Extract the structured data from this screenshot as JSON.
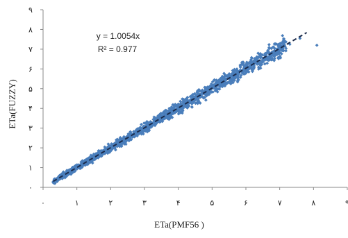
{
  "chart_data": {
    "type": "scatter",
    "title": "",
    "xlabel": "ETa(PMF56 )",
    "ylabel": "ETa(FUZZY)",
    "xlim": [
      0,
      9
    ],
    "ylim": [
      0,
      9
    ],
    "x_ticks": [
      "٠",
      "١",
      "٢",
      "٣",
      "۴",
      "۵",
      "۶",
      "٧",
      "٨",
      "٩"
    ],
    "y_ticks": [
      "٠",
      "١",
      "٢",
      "٣",
      "۴",
      "۵",
      "۶",
      "٧",
      "٨",
      "٩"
    ],
    "grid": false,
    "series": [
      {
        "marker": "diamond",
        "color": "#4a7ebb",
        "point_count_note": "",
        "x": [
          0.3,
          0.35,
          0.4,
          0.45,
          0.5,
          0.6,
          0.7,
          0.8,
          0.9,
          1.0,
          1.1,
          1.2,
          1.3,
          1.4,
          1.5,
          1.6,
          1.7,
          1.8,
          1.9,
          2.0,
          2.1,
          2.2,
          2.3,
          2.4,
          2.5,
          2.6,
          2.7,
          2.8,
          2.9,
          3.0,
          3.1,
          3.2,
          3.3,
          3.4,
          3.5,
          3.6,
          3.7,
          3.8,
          3.9,
          4.0,
          4.1,
          4.2,
          4.3,
          4.4,
          4.5,
          4.6,
          4.7,
          4.8,
          4.9,
          5.0,
          5.1,
          5.2,
          5.3,
          5.4,
          5.5,
          5.6,
          5.7,
          5.8,
          5.9,
          6.0,
          6.1,
          6.2,
          6.3,
          6.4,
          6.5,
          6.6,
          6.7,
          6.8,
          6.9,
          7.0,
          7.1,
          7.3,
          7.6,
          8.1
        ],
        "y": [
          0.25,
          0.32,
          0.38,
          0.46,
          0.52,
          0.62,
          0.72,
          0.82,
          0.93,
          1.02,
          1.12,
          1.22,
          1.33,
          1.42,
          1.52,
          1.62,
          1.72,
          1.82,
          1.92,
          2.02,
          2.12,
          2.22,
          2.31,
          2.42,
          2.52,
          2.62,
          2.72,
          2.82,
          2.92,
          3.03,
          3.12,
          3.22,
          3.33,
          3.43,
          3.53,
          3.63,
          3.73,
          3.83,
          3.93,
          4.03,
          4.13,
          4.23,
          4.33,
          4.43,
          4.53,
          4.63,
          4.73,
          4.83,
          4.93,
          5.02,
          5.12,
          5.22,
          5.32,
          5.42,
          5.52,
          5.62,
          5.72,
          5.82,
          5.92,
          6.02,
          6.12,
          6.22,
          6.3,
          6.4,
          6.48,
          6.58,
          6.66,
          6.75,
          6.85,
          6.95,
          7.05,
          7.25,
          7.55,
          7.2
        ]
      }
    ],
    "trendline": {
      "style": "dashed",
      "color": "#1a2a4a",
      "slope": 1.0054,
      "x_range": [
        0.3,
        7.8
      ]
    },
    "annotations": [
      "y = 1.0054x",
      "R² = 0.977"
    ]
  },
  "colors": {
    "points": "#4a7ebb",
    "trendline": "#1a2a4a",
    "axis": "#888888"
  }
}
